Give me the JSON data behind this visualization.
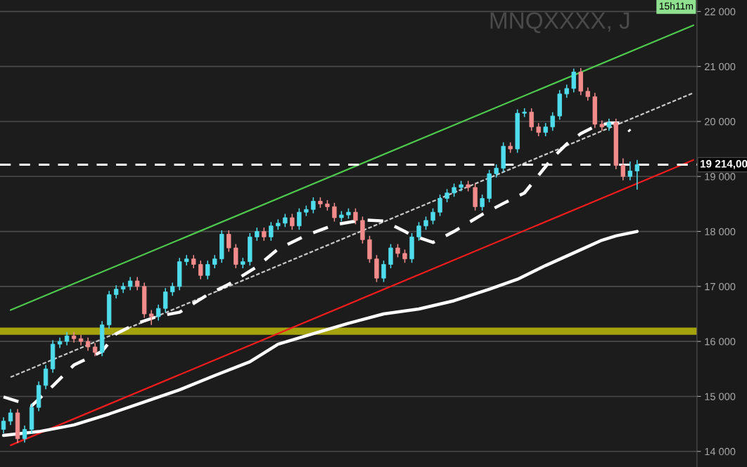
{
  "chart_data": {
    "type": "candlestick",
    "title": "MNQXXXX, J",
    "categories": [
      null,
      null,
      null,
      null,
      null,
      null,
      null,
      null,
      null,
      null,
      null,
      null,
      null,
      null,
      null,
      null,
      null,
      null,
      null,
      null,
      null,
      null,
      null,
      null,
      null,
      null,
      null,
      null,
      null,
      null,
      null,
      null,
      null,
      null,
      null,
      null,
      null,
      null,
      null,
      null,
      null,
      null,
      null,
      null,
      null,
      null,
      null,
      null,
      null,
      null,
      null,
      null,
      null,
      null,
      null,
      null,
      null,
      null,
      null,
      null,
      null,
      null,
      null,
      null,
      null,
      null,
      null,
      null,
      null,
      null,
      null,
      null,
      null,
      null,
      null,
      null,
      null,
      null,
      null,
      null,
      null,
      null,
      null,
      null,
      null,
      null,
      null,
      null,
      null,
      null,
      null,
      null,
      null,
      null,
      null,
      null,
      null,
      null,
      null
    ],
    "ohlc": [
      [
        14400,
        14620,
        14330,
        14550
      ],
      [
        14550,
        14770,
        14480,
        14700
      ],
      [
        14700,
        14770,
        14150,
        14230
      ],
      [
        14230,
        14470,
        14160,
        14400
      ],
      [
        14400,
        14870,
        14330,
        14800
      ],
      [
        14800,
        15270,
        14730,
        15200
      ],
      [
        15200,
        15570,
        15130,
        15500
      ],
      [
        15500,
        16020,
        15430,
        15950
      ],
      [
        15950,
        16070,
        15880,
        16000
      ],
      [
        16000,
        16170,
        15930,
        16100
      ],
      [
        16100,
        16170,
        15980,
        16050
      ],
      [
        16050,
        16120,
        15930,
        16000
      ],
      [
        16000,
        16070,
        15830,
        15900
      ],
      [
        15900,
        15970,
        15730,
        15800
      ],
      [
        15800,
        16370,
        15730,
        16300
      ],
      [
        16300,
        16920,
        16230,
        16850
      ],
      [
        16850,
        17020,
        16780,
        16950
      ],
      [
        16950,
        17070,
        16880,
        17000
      ],
      [
        17000,
        17170,
        16930,
        17100
      ],
      [
        17100,
        17170,
        16930,
        17000
      ],
      [
        17000,
        17070,
        16430,
        16500
      ],
      [
        16500,
        16570,
        16300,
        16450
      ],
      [
        16450,
        16670,
        16380,
        16600
      ],
      [
        16600,
        16970,
        16530,
        16900
      ],
      [
        16900,
        17070,
        16830,
        17000
      ],
      [
        17000,
        17520,
        16930,
        17450
      ],
      [
        17450,
        17570,
        17380,
        17500
      ],
      [
        17500,
        17570,
        17330,
        17400
      ],
      [
        17400,
        17470,
        17130,
        17200
      ],
      [
        17200,
        17470,
        17130,
        17400
      ],
      [
        17400,
        17570,
        17330,
        17500
      ],
      [
        17500,
        18020,
        17430,
        17950
      ],
      [
        17950,
        18020,
        17630,
        17700
      ],
      [
        17700,
        17770,
        17330,
        17400
      ],
      [
        17400,
        17520,
        17330,
        17450
      ],
      [
        17450,
        17970,
        17380,
        17900
      ],
      [
        17900,
        18070,
        17830,
        18000
      ],
      [
        18000,
        18070,
        17830,
        17900
      ],
      [
        17900,
        18170,
        17830,
        18100
      ],
      [
        18100,
        18220,
        18030,
        18150
      ],
      [
        18150,
        18320,
        18080,
        18250
      ],
      [
        18250,
        18320,
        18030,
        18100
      ],
      [
        18100,
        18420,
        18030,
        18350
      ],
      [
        18350,
        18470,
        18280,
        18400
      ],
      [
        18400,
        18620,
        18330,
        18550
      ],
      [
        18550,
        18620,
        18430,
        18500
      ],
      [
        18500,
        18570,
        18380,
        18450
      ],
      [
        18450,
        18520,
        18180,
        18250
      ],
      [
        18250,
        18370,
        18180,
        18300
      ],
      [
        18300,
        18420,
        18230,
        18350
      ],
      [
        18350,
        18420,
        18130,
        18200
      ],
      [
        18200,
        18270,
        17780,
        17850
      ],
      [
        17850,
        17920,
        17430,
        17500
      ],
      [
        17500,
        17570,
        17080,
        17150
      ],
      [
        17150,
        17470,
        17080,
        17400
      ],
      [
        17400,
        17770,
        17330,
        17700
      ],
      [
        17700,
        17770,
        17530,
        17600
      ],
      [
        17600,
        17670,
        17430,
        17500
      ],
      [
        17500,
        17970,
        17430,
        17900
      ],
      [
        17900,
        18170,
        17830,
        18100
      ],
      [
        18100,
        18270,
        18030,
        18200
      ],
      [
        18200,
        18420,
        18130,
        18350
      ],
      [
        18350,
        18670,
        18280,
        18600
      ],
      [
        18600,
        18770,
        18530,
        18700
      ],
      [
        18700,
        18870,
        18630,
        18800
      ],
      [
        18800,
        18920,
        18730,
        18850
      ],
      [
        18850,
        18920,
        18730,
        18800
      ],
      [
        18800,
        18870,
        18380,
        18450
      ],
      [
        18450,
        18670,
        18380,
        18600
      ],
      [
        18600,
        19120,
        18530,
        19050
      ],
      [
        19050,
        19220,
        18980,
        19150
      ],
      [
        19150,
        19620,
        19080,
        19550
      ],
      [
        19550,
        19620,
        19430,
        19500
      ],
      [
        19500,
        20220,
        19430,
        20150
      ],
      [
        20150,
        20240,
        20080,
        20170
      ],
      [
        20170,
        20240,
        19830,
        19900
      ],
      [
        19900,
        19970,
        19730,
        19800
      ],
      [
        19800,
        19970,
        19730,
        19900
      ],
      [
        19900,
        20170,
        19830,
        20100
      ],
      [
        20100,
        20570,
        20030,
        20500
      ],
      [
        20500,
        20670,
        20430,
        20600
      ],
      [
        20600,
        20960,
        20530,
        20900
      ],
      [
        20900,
        20970,
        20480,
        20550
      ],
      [
        20550,
        20620,
        20380,
        20450
      ],
      [
        20450,
        20520,
        19880,
        19950
      ],
      [
        19950,
        20020,
        19830,
        19900
      ],
      [
        19900,
        20050,
        19830,
        19980
      ],
      [
        19980,
        20050,
        19130,
        19200
      ],
      [
        19200,
        19330,
        18930,
        19000
      ],
      [
        19000,
        19270,
        18930,
        19100
      ],
      [
        19100,
        19300,
        18760,
        19214
      ],
      null,
      null,
      null,
      null,
      null,
      null,
      null,
      null
    ],
    "colors": [
      "#4fdcec",
      "#4fdcec",
      "#f28b8b",
      "#4fdcec",
      "#4fdcec",
      "#4fdcec",
      "#4fdcec",
      "#4fdcec",
      "#4fdcec",
      "#4fdcec",
      "#f28b8b",
      "#f28b8b",
      "#f28b8b",
      "#f28b8b",
      "#4fdcec",
      "#4fdcec",
      "#4fdcec",
      "#4fdcec",
      "#4fdcec",
      "#f28b8b",
      "#f28b8b",
      "#f28b8b",
      "#4fdcec",
      "#4fdcec",
      "#4fdcec",
      "#4fdcec",
      "#4fdcec",
      "#f28b8b",
      "#f28b8b",
      "#4fdcec",
      "#4fdcec",
      "#4fdcec",
      "#f28b8b",
      "#f28b8b",
      "#4fdcec",
      "#4fdcec",
      "#4fdcec",
      "#f28b8b",
      "#4fdcec",
      "#4fdcec",
      "#4fdcec",
      "#f28b8b",
      "#4fdcec",
      "#4fdcec",
      "#4fdcec",
      "#f28b8b",
      "#f28b8b",
      "#f28b8b",
      "#4fdcec",
      "#4fdcec",
      "#f28b8b",
      "#f28b8b",
      "#f28b8b",
      "#f28b8b",
      "#4fdcec",
      "#4fdcec",
      "#f28b8b",
      "#f28b8b",
      "#4fdcec",
      "#4fdcec",
      "#4fdcec",
      "#4fdcec",
      "#4fdcec",
      "#4fdcec",
      "#4fdcec",
      "#4fdcec",
      "#f28b8b",
      "#f28b8b",
      "#4fdcec",
      "#4fdcec",
      "#4fdcec",
      "#4fdcec",
      "#f28b8b",
      "#4fdcec",
      "#4fdcec",
      "#f28b8b",
      "#f28b8b",
      "#4fdcec",
      "#4fdcec",
      "#4fdcec",
      "#4fdcec",
      "#4fdcec",
      "#f28b8b",
      "#f28b8b",
      "#f28b8b",
      "#f28b8b",
      "#4fdcec",
      "#f28b8b",
      "#f28b8b",
      "#4fdcec",
      "#4fdcec",
      null,
      null,
      null,
      null,
      null,
      null,
      null,
      null
    ],
    "series": [
      {
        "type": "line",
        "color": "#4ec94e",
        "line_style": "solid",
        "values": [
          null,
          16570,
          null,
          null,
          null,
          null,
          null,
          null,
          null,
          null,
          null,
          null,
          null,
          null,
          null,
          null,
          null,
          null,
          null,
          null,
          null,
          null,
          null,
          null,
          null,
          null,
          null,
          null,
          null,
          null,
          null,
          null,
          null,
          null,
          null,
          null,
          null,
          null,
          null,
          null,
          null,
          null,
          null,
          null,
          null,
          null,
          null,
          null,
          null,
          null,
          null,
          null,
          null,
          null,
          null,
          null,
          null,
          null,
          null,
          null,
          null,
          null,
          null,
          null,
          null,
          null,
          null,
          null,
          null,
          null,
          null,
          null,
          null,
          null,
          null,
          null,
          null,
          null,
          null,
          null,
          null,
          null,
          null,
          null,
          null,
          null,
          null,
          null,
          null,
          null,
          null,
          null,
          null,
          null,
          null,
          null,
          null,
          null,
          21750
        ]
      },
      {
        "type": "line",
        "color": "#ee1c1c",
        "line_style": "solid",
        "values": [
          null,
          14110,
          null,
          null,
          null,
          null,
          null,
          null,
          null,
          null,
          null,
          null,
          null,
          null,
          null,
          null,
          null,
          null,
          null,
          null,
          null,
          null,
          null,
          null,
          null,
          null,
          null,
          null,
          null,
          null,
          null,
          null,
          null,
          null,
          null,
          null,
          null,
          null,
          null,
          null,
          null,
          null,
          null,
          null,
          null,
          null,
          null,
          null,
          null,
          null,
          null,
          null,
          null,
          null,
          null,
          null,
          null,
          null,
          null,
          null,
          null,
          null,
          null,
          null,
          null,
          null,
          null,
          null,
          null,
          null,
          null,
          null,
          null,
          null,
          null,
          null,
          null,
          null,
          null,
          null,
          null,
          null,
          null,
          null,
          null,
          null,
          null,
          null,
          null,
          null,
          null,
          null,
          null,
          null,
          null,
          null,
          null,
          null,
          19300
        ]
      },
      {
        "type": "line",
        "color": "#c8c8c8",
        "line_style": "dotted",
        "values": [
          null,
          15350,
          null,
          null,
          null,
          null,
          null,
          null,
          null,
          null,
          null,
          null,
          null,
          null,
          null,
          null,
          null,
          null,
          null,
          null,
          null,
          null,
          null,
          null,
          null,
          null,
          null,
          null,
          null,
          null,
          null,
          null,
          null,
          null,
          null,
          null,
          null,
          null,
          null,
          null,
          null,
          null,
          null,
          null,
          null,
          null,
          null,
          null,
          null,
          null,
          null,
          null,
          null,
          null,
          null,
          null,
          null,
          null,
          null,
          null,
          null,
          null,
          null,
          null,
          null,
          null,
          null,
          null,
          null,
          null,
          null,
          null,
          null,
          null,
          null,
          null,
          null,
          null,
          null,
          null,
          null,
          null,
          null,
          null,
          null,
          null,
          null,
          null,
          null,
          null,
          null,
          null,
          null,
          null,
          null,
          null,
          null,
          null,
          20520
        ]
      },
      {
        "type": "line",
        "color": "#ffffff",
        "line_style": "dashed",
        "values": [
          14990,
          null,
          null,
          null,
          14830,
          null,
          null,
          15190,
          null,
          null,
          15570,
          null,
          null,
          null,
          15820,
          null,
          16140,
          null,
          null,
          16330,
          null,
          null,
          16460,
          null,
          null,
          16530,
          null,
          null,
          null,
          16850,
          null,
          null,
          17040,
          null,
          null,
          null,
          17360,
          null,
          null,
          17680,
          null,
          null,
          null,
          17930,
          null,
          null,
          null,
          18120,
          null,
          null,
          null,
          18210,
          null,
          null,
          18190,
          null,
          null,
          18000,
          17930,
          null,
          null,
          17800,
          null,
          null,
          18000,
          null,
          null,
          null,
          18310,
          null,
          null,
          18510,
          null,
          null,
          18700,
          null,
          19020,
          null,
          19340,
          null,
          19590,
          null,
          19780,
          null,
          19910,
          null,
          19970,
          null,
          19970,
          19820,
          null,
          null,
          null,
          null,
          null,
          null,
          null,
          null,
          null
        ]
      },
      {
        "type": "line",
        "color": "#ffffff",
        "line_style": "solid",
        "values": [
          14290,
          null,
          null,
          null,
          null,
          14360,
          null,
          null,
          null,
          null,
          14480,
          null,
          null,
          null,
          null,
          14680,
          null,
          null,
          null,
          null,
          14900,
          null,
          null,
          null,
          null,
          15120,
          null,
          null,
          null,
          null,
          15380,
          null,
          null,
          null,
          null,
          15630,
          null,
          null,
          null,
          15950,
          null,
          null,
          null,
          null,
          16140,
          null,
          null,
          null,
          null,
          16330,
          null,
          null,
          null,
          null,
          16500,
          null,
          null,
          null,
          null,
          16590,
          null,
          null,
          null,
          null,
          16740,
          null,
          null,
          null,
          null,
          16950,
          null,
          null,
          null,
          17130,
          null,
          null,
          null,
          17380,
          null,
          null,
          null,
          17610,
          null,
          null,
          null,
          17840,
          null,
          17920,
          null,
          null,
          18000,
          null,
          null,
          null,
          null,
          null,
          null,
          null,
          null
        ]
      }
    ],
    "bands": [
      {
        "axis": "y",
        "from": 16120,
        "to": 16250,
        "color": "#b5b20c"
      }
    ],
    "ref_lines": [
      {
        "axis": "y",
        "value": 19214,
        "label": "19 214,00",
        "color": "#ffffff",
        "line_style": "dashed"
      }
    ],
    "annotations": [
      "15h11m"
    ],
    "ylim": [
      13716,
      22209
    ],
    "yticks": [
      {
        "value": 14000,
        "label": "14 000"
      },
      {
        "value": 15000,
        "label": "15 000"
      },
      {
        "value": 16000,
        "label": "16 000"
      },
      {
        "value": 17000,
        "label": "17 000"
      },
      {
        "value": 18000,
        "label": "18 000"
      },
      {
        "value": 19000,
        "label": "19 000"
      },
      {
        "value": 20000,
        "label": "20 000"
      },
      {
        "value": 21000,
        "label": "21 000"
      },
      {
        "value": 22000,
        "label": "22 000"
      }
    ],
    "grid": "y",
    "tick_labels": "y"
  }
}
